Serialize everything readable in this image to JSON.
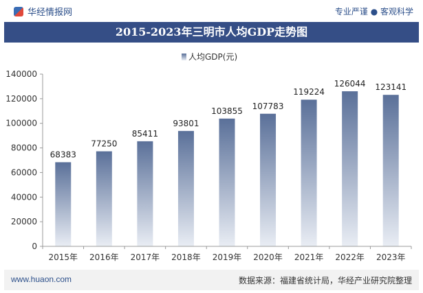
{
  "header": {
    "brand": "华经情报网",
    "tagline": "专业严谨 ● 客观科学"
  },
  "chart_data": {
    "type": "bar",
    "title": "2015-2023年三明市人均GDP走势图",
    "legend": "人均GDP(元)",
    "legend_position": "top-center",
    "categories": [
      "2015年",
      "2016年",
      "2017年",
      "2018年",
      "2019年",
      "2020年",
      "2021年",
      "2022年",
      "2023年"
    ],
    "values": [
      68383,
      77250,
      85411,
      93801,
      103855,
      107783,
      119224,
      126044,
      123141
    ],
    "ylim": [
      0,
      140000
    ],
    "yticks": [
      0,
      20000,
      40000,
      60000,
      80000,
      100000,
      120000,
      140000
    ],
    "bar_color_top": "#5a7099",
    "bar_color_bottom": "#e9edf4",
    "grid": false
  },
  "footer": {
    "website": "www.huaon.com",
    "source": "数据来源：福建省统计局，华经产业研究院整理"
  }
}
